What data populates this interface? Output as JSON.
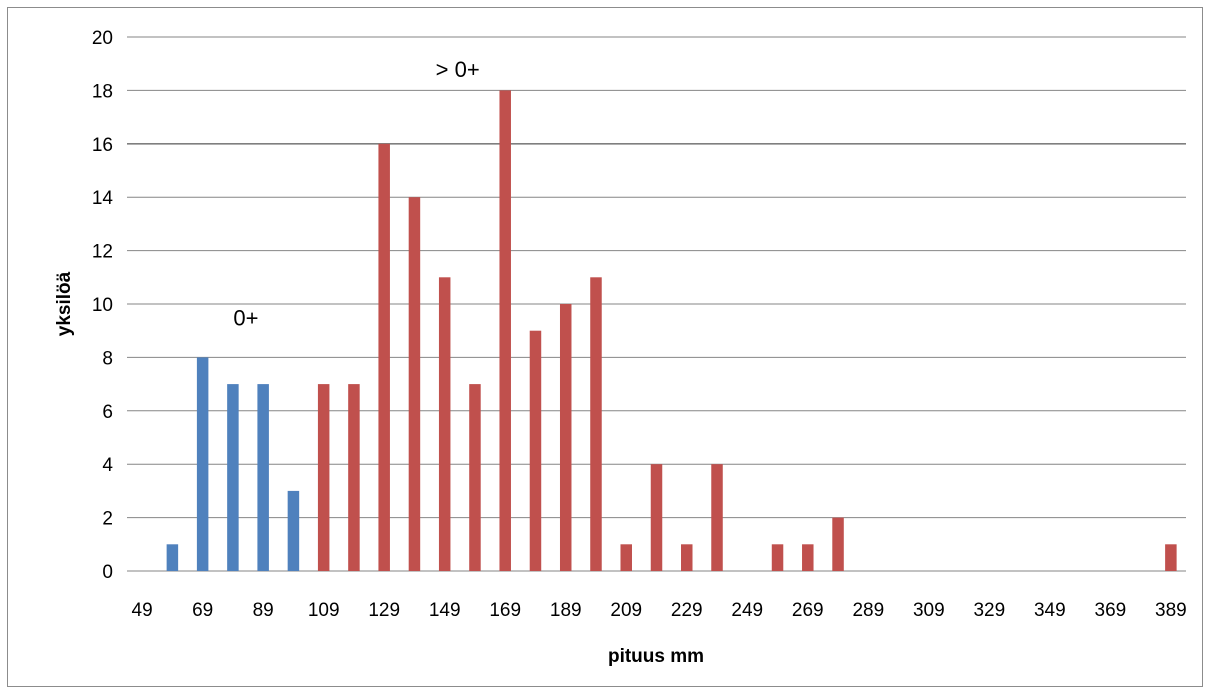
{
  "chart_data": {
    "type": "bar",
    "xlabel": "pituus mm",
    "ylabel": "yksilöä",
    "ylim": [
      0,
      20
    ],
    "yticks": [
      0,
      2,
      4,
      6,
      8,
      10,
      12,
      14,
      16,
      18,
      20
    ],
    "grid": true,
    "categories": [
      49,
      59,
      69,
      79,
      89,
      99,
      109,
      119,
      129,
      139,
      149,
      159,
      169,
      179,
      189,
      199,
      209,
      219,
      229,
      239,
      249,
      259,
      269,
      279,
      289,
      299,
      309,
      319,
      329,
      339,
      349,
      359,
      369,
      379,
      389
    ],
    "x_tick_labels": [
      "49",
      "69",
      "89",
      "109",
      "129",
      "149",
      "169",
      "189",
      "209",
      "229",
      "249",
      "269",
      "289",
      "309",
      "329",
      "349",
      "369",
      "389"
    ],
    "series": [
      {
        "name": "",
        "color": "#4f81bd",
        "values": [
          0,
          1,
          8,
          7,
          7,
          3,
          0,
          0,
          0,
          0,
          0,
          0,
          0,
          0,
          0,
          0,
          0,
          0,
          0,
          0,
          0,
          0,
          0,
          0,
          0,
          0,
          0,
          0,
          0,
          0,
          0,
          0,
          0,
          0,
          0
        ]
      },
      {
        "name": "",
        "color": "#c0504d",
        "values": [
          0,
          0,
          0,
          0,
          0,
          0,
          7,
          7,
          16,
          14,
          11,
          7,
          18,
          9,
          10,
          11,
          1,
          4,
          1,
          4,
          0,
          1,
          1,
          2,
          0,
          0,
          0,
          0,
          0,
          0,
          0,
          0,
          0,
          0,
          1
        ]
      }
    ],
    "annotations": [
      {
        "text": "0+",
        "category": 79,
        "y": 9.2
      },
      {
        "text": "> 0+",
        "category": 149,
        "y": 18.5
      }
    ]
  }
}
